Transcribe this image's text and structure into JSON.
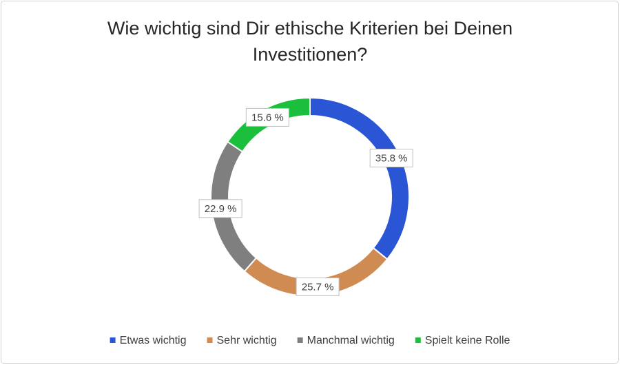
{
  "chart_data": {
    "type": "donut",
    "title": "Wie wichtig sind Dir ethische Kriterien bei Deinen Investitionen?",
    "categories": [
      "Etwas wichtig",
      "Sehr wichtig",
      "Manchmal wichtig",
      "Spielt keine Rolle"
    ],
    "values": [
      35.8,
      25.7,
      22.9,
      15.6
    ],
    "value_labels": [
      "35.8 %",
      "25.7 %",
      "22.9 %",
      "15.6 %"
    ],
    "colors": [
      "#2a56d6",
      "#d08b52",
      "#7f7f7f",
      "#1cbf3c"
    ],
    "legend": "bottom"
  }
}
